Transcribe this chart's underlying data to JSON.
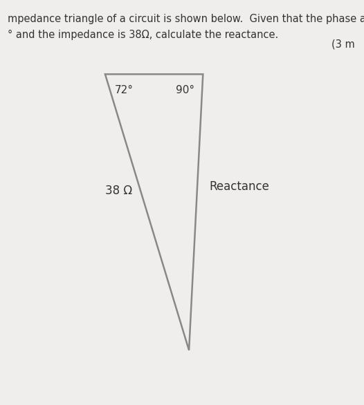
{
  "title_line1": "mpedance triangle of a circuit is shown below.  Given that the phase a",
  "title_line2": "° and the impedance is 38Ω, calculate the reactance.",
  "marks_text": "(3 m",
  "angle_top_left": "72°",
  "angle_top_right": "90°",
  "label_left": "38 Ω",
  "label_right": "Reactance",
  "triangle_color": "#888888",
  "line_width": 1.8,
  "bg_color": "#f0eeec",
  "text_color": "#333333",
  "font_size_body": 10.5,
  "font_size_angle": 11,
  "font_size_label": 12,
  "A": [
    2.8,
    8.3
  ],
  "B": [
    5.6,
    8.3
  ],
  "C": [
    5.2,
    1.2
  ]
}
